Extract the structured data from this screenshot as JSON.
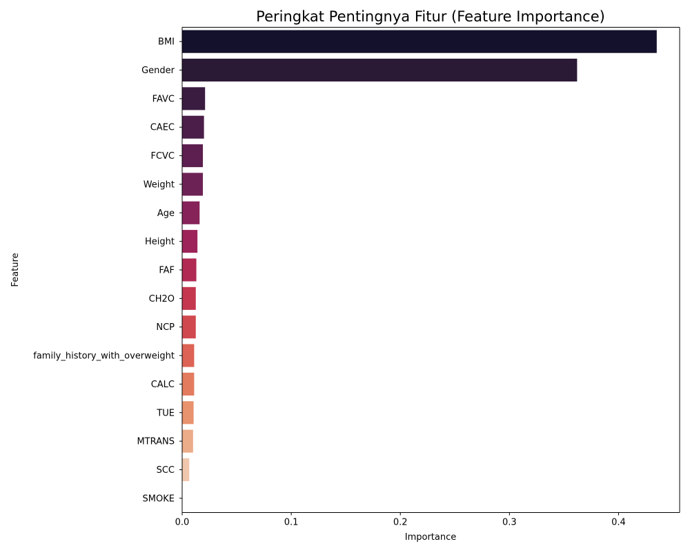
{
  "chart_data": {
    "type": "bar",
    "orientation": "horizontal",
    "title": "Peringkat Pentingnya Fitur (Feature Importance)",
    "xlabel": "Importance",
    "ylabel": "Feature",
    "xlim": [
      0,
      0.456
    ],
    "xticks": [
      0.0,
      0.1,
      0.2,
      0.3,
      0.4
    ],
    "xtick_labels": [
      "0.0",
      "0.1",
      "0.2",
      "0.3",
      "0.4"
    ],
    "grid": false,
    "legend": "none",
    "categories": [
      "BMI",
      "Gender",
      "FAVC",
      "CAEC",
      "FCVC",
      "Weight",
      "Age",
      "Height",
      "FAF",
      "CH2O",
      "NCP",
      "family_history_with_overweight",
      "CALC",
      "TUE",
      "MTRANS",
      "SCC",
      "SMOKE"
    ],
    "values": [
      0.435,
      0.362,
      0.021,
      0.02,
      0.019,
      0.019,
      0.016,
      0.014,
      0.013,
      0.0125,
      0.0125,
      0.011,
      0.011,
      0.0105,
      0.01,
      0.0065,
      0.0003
    ],
    "colors": [
      "#13112b",
      "#2b1a36",
      "#3a1c40",
      "#4a1e48",
      "#5c1f4f",
      "#6d2255",
      "#862459",
      "#9c2458",
      "#b12a54",
      "#c4374e",
      "#d0494f",
      "#dc6355",
      "#e37b5e",
      "#e8926e",
      "#ecab89",
      "#f0c6ad",
      "#f5dccb"
    ]
  }
}
